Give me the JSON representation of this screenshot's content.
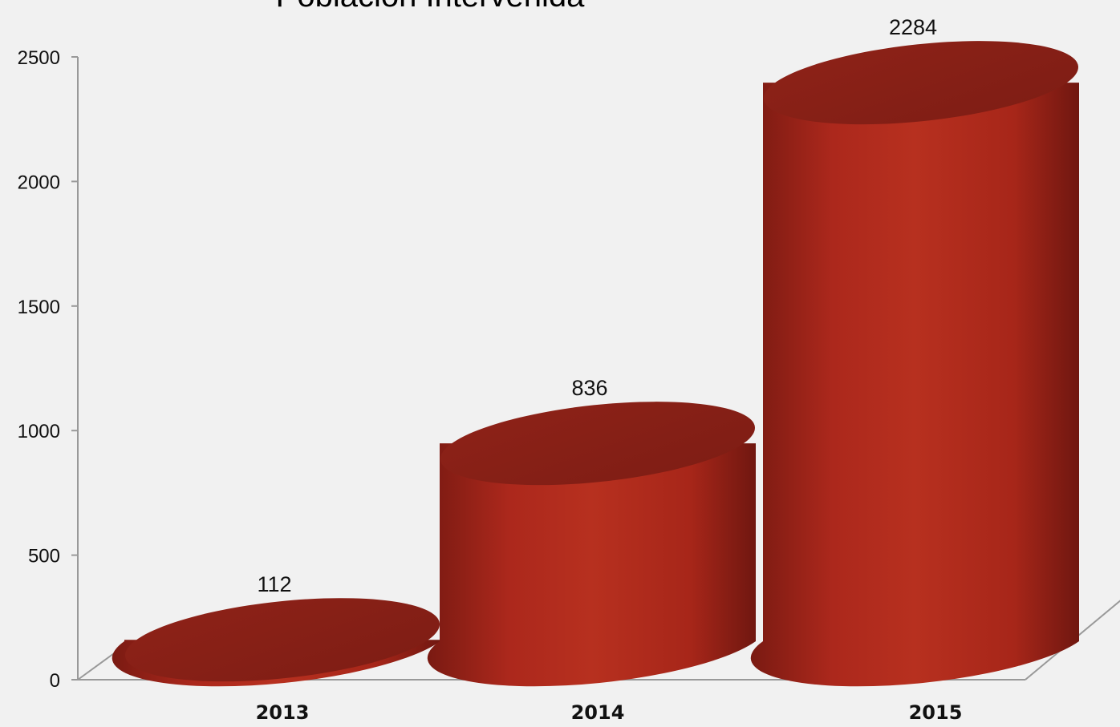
{
  "chart_data": {
    "type": "bar",
    "style": "3d-cylinder",
    "title": "Población Intervenida",
    "categories": [
      "2013",
      "2014",
      "2015"
    ],
    "values": [
      112,
      836,
      2284
    ],
    "data_labels": [
      "112",
      "836",
      "2284"
    ],
    "y_ticks": [
      "0",
      "500",
      "1000",
      "1500",
      "2000",
      "2500"
    ],
    "ylim": [
      0,
      2500
    ],
    "xlabel": "",
    "ylabel": "",
    "grid": false,
    "legend": "none",
    "colors": {
      "bar": "#b3291d",
      "bar_dark": "#7d1c13",
      "bar_top": "#8a2117",
      "axis": "#999999",
      "background": "#f1f1f1"
    }
  }
}
